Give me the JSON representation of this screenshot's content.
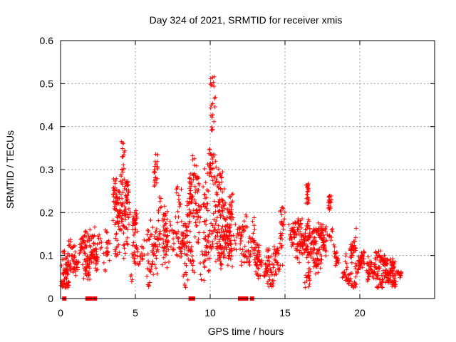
{
  "chart_data": {
    "type": "scatter",
    "title": "Day 324 of 2021, SRMTID for receiver xmis",
    "xlabel": "GPS time / hours",
    "ylabel": "SRMTID / TECUs",
    "xlim": [
      0,
      25
    ],
    "ylim": [
      0,
      0.6
    ],
    "x_ticks": [
      0,
      5,
      10,
      15,
      20
    ],
    "y_ticks": [
      0,
      0.1,
      0.2,
      0.3,
      0.4,
      0.5,
      0.6
    ],
    "x_tick_labels": [
      "0",
      "5",
      "10",
      "15",
      "20"
    ],
    "y_tick_labels": [
      "0",
      "0.1",
      "0.2",
      "0.3",
      "0.4",
      "0.5",
      "0.6"
    ],
    "grid": true,
    "marker": "plus",
    "color": "#ff0000",
    "profile": {
      "x": [
        0.0,
        0.5,
        1.0,
        1.5,
        2.0,
        2.5,
        3.0,
        3.5,
        4.0,
        4.5,
        5.0,
        5.5,
        6.0,
        6.5,
        7.0,
        7.5,
        8.0,
        8.5,
        9.0,
        9.5,
        10.0,
        10.5,
        11.0,
        11.5,
        12.0,
        12.5,
        13.0,
        13.5,
        14.0,
        14.5,
        15.0,
        15.5,
        16.0,
        16.5,
        17.0,
        17.5,
        18.0,
        18.5,
        19.0,
        19.5,
        20.0,
        20.5,
        21.0,
        21.5,
        22.0,
        22.5,
        22.8
      ],
      "median": [
        0.08,
        0.08,
        0.09,
        0.09,
        0.1,
        0.09,
        0.14,
        0.15,
        0.16,
        0.16,
        0.13,
        0.11,
        0.13,
        0.14,
        0.15,
        0.13,
        0.16,
        0.15,
        0.17,
        0.18,
        0.19,
        0.2,
        0.18,
        0.17,
        0.14,
        0.12,
        0.12,
        0.13,
        0.1,
        0.1,
        0.17,
        0.15,
        0.12,
        0.12,
        0.11,
        0.11,
        0.1,
        0.1,
        0.09,
        0.08,
        0.08,
        0.07,
        0.06,
        0.06,
        0.06,
        0.06,
        0.05
      ],
      "spread": [
        0.025,
        0.03,
        0.03,
        0.025,
        0.03,
        0.025,
        0.045,
        0.05,
        0.06,
        0.05,
        0.045,
        0.04,
        0.05,
        0.05,
        0.05,
        0.045,
        0.05,
        0.05,
        0.06,
        0.06,
        0.06,
        0.065,
        0.055,
        0.05,
        0.045,
        0.04,
        0.04,
        0.045,
        0.035,
        0.03,
        0.04,
        0.04,
        0.035,
        0.035,
        0.035,
        0.035,
        0.03,
        0.03,
        0.025,
        0.025,
        0.025,
        0.02,
        0.02,
        0.02,
        0.02,
        0.02,
        0.015
      ]
    },
    "n_points": 1900,
    "peaks": [
      {
        "x": [
          10.0,
          10.35
        ],
        "y": [
          0.38,
          0.52
        ]
      },
      {
        "x": [
          9.9,
          10.2
        ],
        "y": [
          0.28,
          0.36
        ]
      },
      {
        "x": [
          3.5,
          3.8
        ],
        "y": [
          0.22,
          0.29
        ]
      },
      {
        "x": [
          4.0,
          4.3
        ],
        "y": [
          0.24,
          0.37
        ]
      },
      {
        "x": [
          4.3,
          4.6
        ],
        "y": [
          0.22,
          0.3
        ]
      },
      {
        "x": [
          6.2,
          6.5
        ],
        "y": [
          0.26,
          0.34
        ]
      },
      {
        "x": [
          16.4,
          16.6
        ],
        "y": [
          0.22,
          0.27
        ]
      },
      {
        "x": [
          17.9,
          18.1
        ],
        "y": [
          0.2,
          0.24
        ]
      },
      {
        "x": [
          8.6,
          8.8
        ],
        "y": [
          0.22,
          0.29
        ]
      }
    ],
    "gap_markers_x": [
      0.25,
      1.8,
      2.0,
      2.3,
      8.7,
      8.85,
      12.0,
      12.2,
      12.4,
      12.8
    ],
    "gap_markers_y": 0.0
  }
}
